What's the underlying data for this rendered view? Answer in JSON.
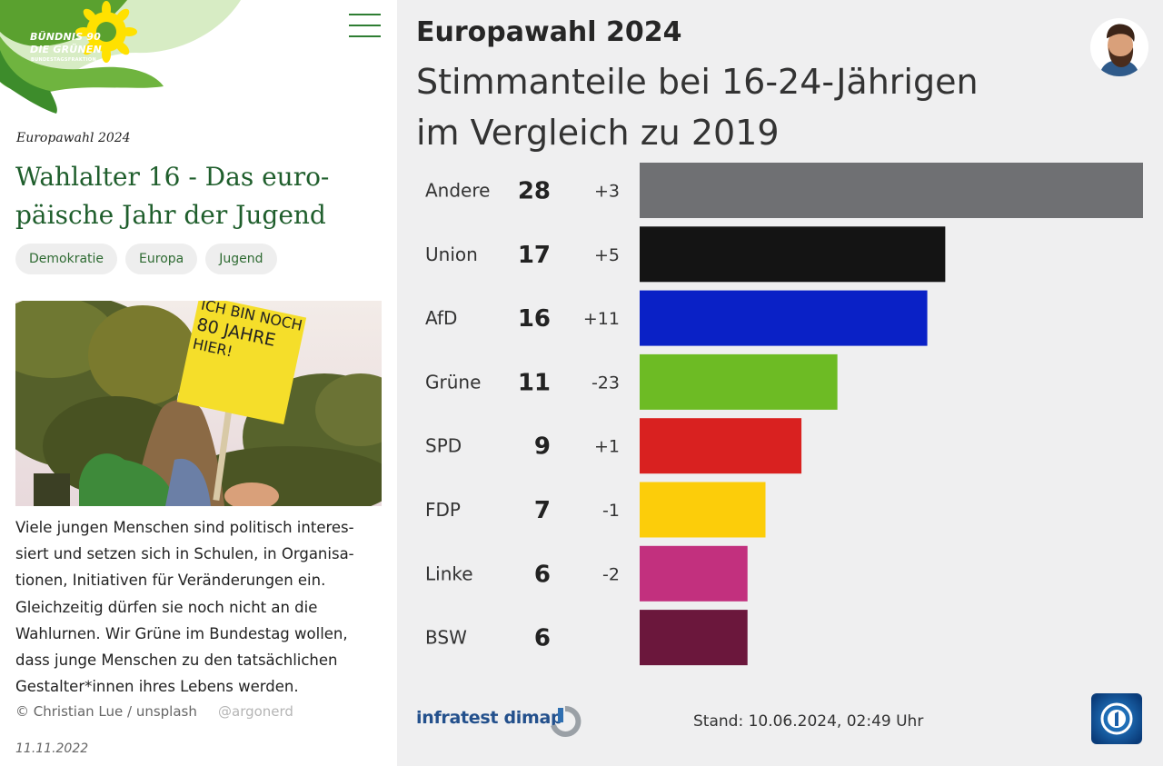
{
  "left": {
    "logo": {
      "line1": "BÜNDNIS 90",
      "line2": "DIE GRÜNEN",
      "line3": "BUNDESTAGSFRAKTION"
    },
    "kicker": "Europawahl 2024",
    "headline": [
      "Wahlalter 16 - Das euro-",
      "päische Jahr der Jugend"
    ],
    "tags": [
      "Demokratie",
      "Europa",
      "Jugend"
    ],
    "sign_text": [
      "ICH BIN NOCH",
      "80 JAHRE",
      "HIER!"
    ],
    "body_lines": [
      "Viele jungen Menschen sind politisch interes-",
      "siert und setzen sich in Schulen, in Organisa-",
      "tionen, Initiativen für Veränderungen ein.",
      "Gleichzeitig dürfen sie noch nicht an die",
      "Wahlurnen. Wir Grüne im Bundestag wollen,",
      "dass junge Menschen zu den tatsächlichen",
      "Gestalter*innen ihres Lebens werden."
    ],
    "credit": "© Christian Lue / unsplash",
    "handle": "@argonerd",
    "date": "11.11.2022"
  },
  "right": {
    "title": "Europawahl 2024",
    "subtitle_lines": [
      "Stimmanteile bei 16-24-Jährigen",
      "im Vergleich zu 2019"
    ],
    "source": "infratest dimap",
    "stand": "Stand:  10.06.2024, 02:49 Uhr"
  },
  "chart_data": {
    "type": "bar",
    "orientation": "horizontal",
    "title": "Europawahl 2024",
    "subtitle": "Stimmanteile bei 16-24-Jährigen im Vergleich zu 2019",
    "categories": [
      "Andere",
      "Union",
      "AfD",
      "Grüne",
      "SPD",
      "FDP",
      "Linke",
      "BSW"
    ],
    "values": [
      28,
      17,
      16,
      11,
      9,
      7,
      6,
      6
    ],
    "changes": [
      "+3",
      "+5",
      "+11",
      "-23",
      "+1",
      "-1",
      "-2",
      ""
    ],
    "colors": [
      "#6f7073",
      "#141414",
      "#0a21c6",
      "#6dbb24",
      "#d92120",
      "#fccd0a",
      "#c2307e",
      "#6b173c"
    ],
    "xlim": [
      0,
      28
    ],
    "grid": false,
    "legend": "none"
  }
}
